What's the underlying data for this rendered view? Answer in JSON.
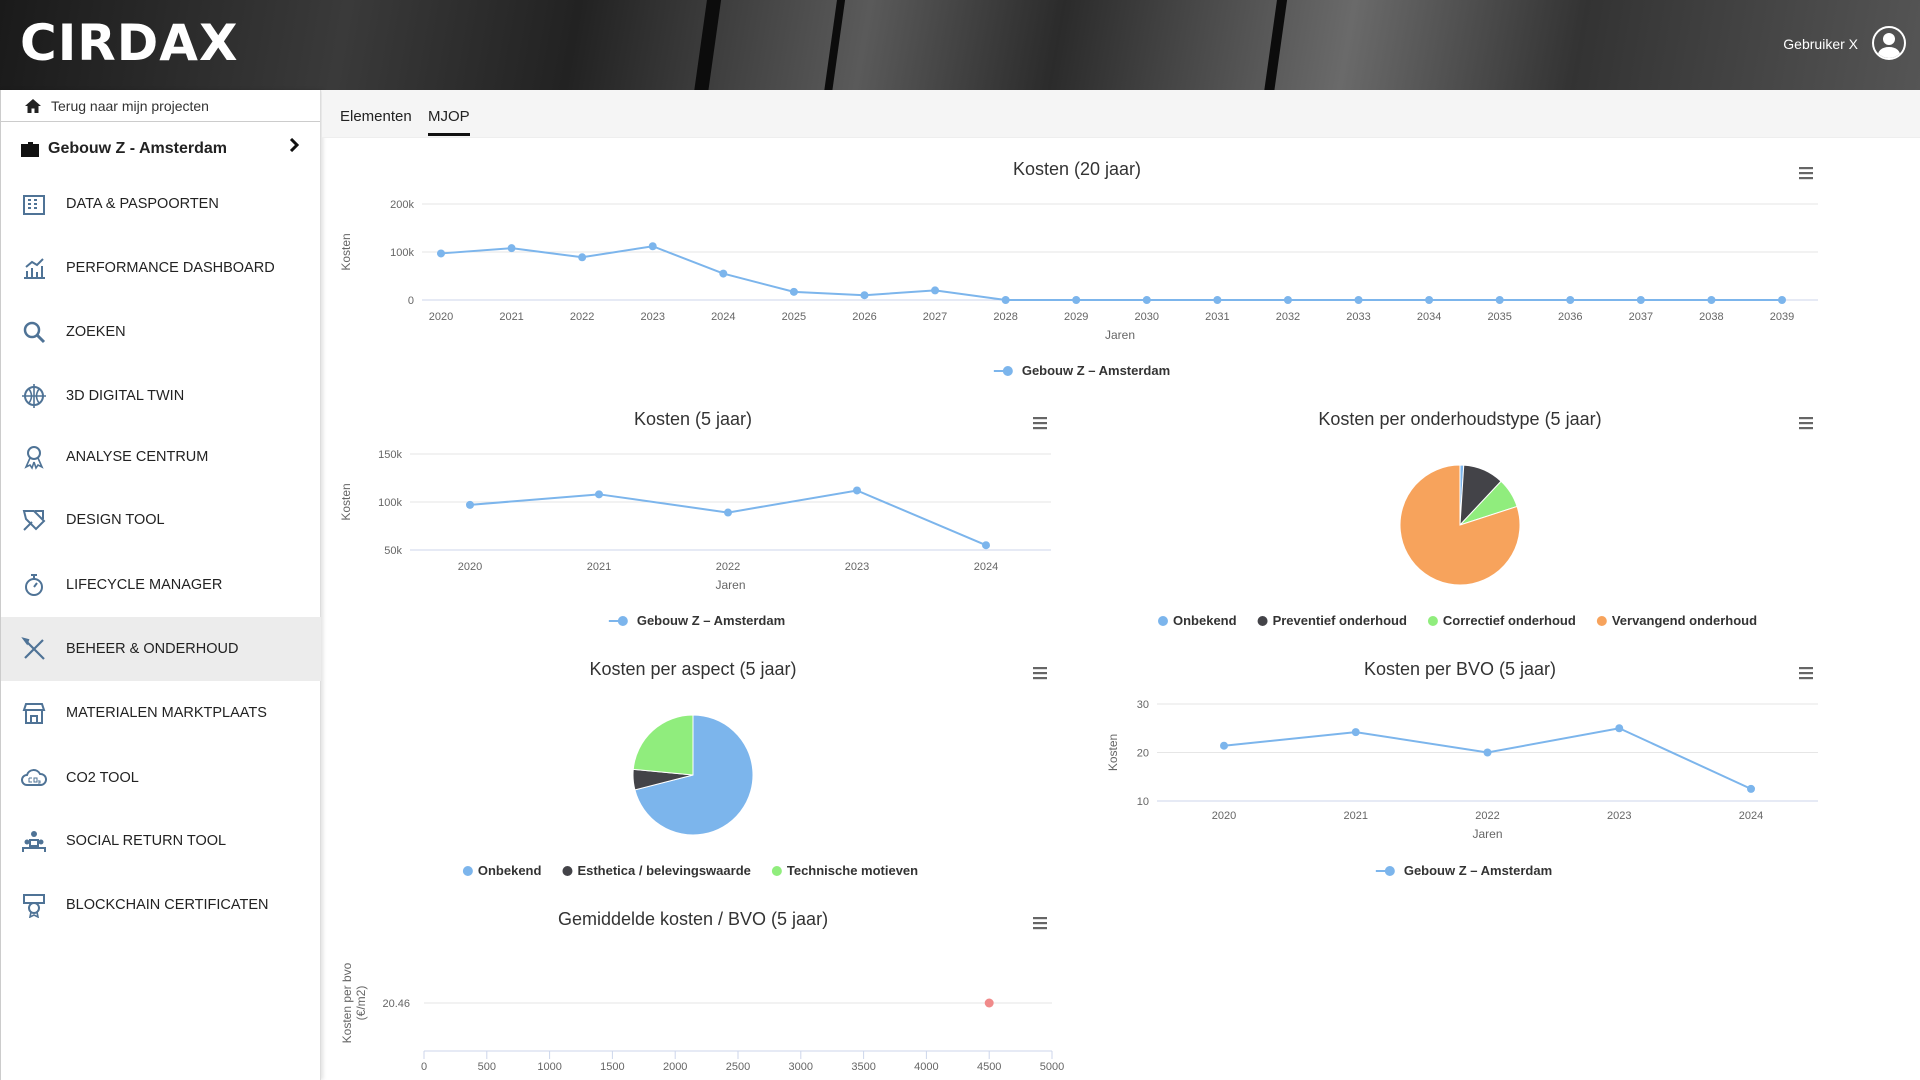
{
  "header": {
    "logo": "CIRDAX",
    "user_name": "Gebruiker X"
  },
  "sidebar": {
    "back_label": "Terug naar mijn projecten",
    "project_name": "Gebouw Z - Amsterdam",
    "items": [
      {
        "label": "DATA & PASPOORTEN",
        "icon": "building-icon"
      },
      {
        "label": "PERFORMANCE DASHBOARD",
        "icon": "bar-chart-icon"
      },
      {
        "label": "ZOEKEN",
        "icon": "search-icon"
      },
      {
        "label": "3D DIGITAL TWIN",
        "icon": "globe-icon"
      },
      {
        "label": "ANALYSE CENTRUM",
        "icon": "award-icon"
      },
      {
        "label": "DESIGN TOOL",
        "icon": "design-icon"
      },
      {
        "label": "LIFECYCLE MANAGER",
        "icon": "stopwatch-icon"
      },
      {
        "label": "BEHEER & ONDERHOUD",
        "icon": "tools-icon",
        "active": true
      },
      {
        "label": "MATERIALEN MARKTPLAATS",
        "icon": "store-icon"
      },
      {
        "label": "CO2 TOOL",
        "icon": "cloud-co2-icon"
      },
      {
        "label": "SOCIAL RETURN TOOL",
        "icon": "people-icon"
      },
      {
        "label": "BLOCKCHAIN CERTIFICATEN",
        "icon": "certificate-icon"
      }
    ]
  },
  "tabs": [
    {
      "label": "Elementen"
    },
    {
      "label": "MJOP",
      "active": true
    }
  ],
  "colors": {
    "blue": "#7cb5ec",
    "dark": "#434348",
    "green": "#90ed7d",
    "orange": "#f7a35c",
    "point": "#f08a8a",
    "grid": "#e6e6e6"
  },
  "chart_data": [
    {
      "id": "c20",
      "type": "line",
      "title": "Kosten (20 jaar)",
      "xlabel": "Jaren",
      "ylabel": "Kosten",
      "categories": [
        "2020",
        "2021",
        "2022",
        "2023",
        "2024",
        "2025",
        "2026",
        "2027",
        "2028",
        "2029",
        "2030",
        "2031",
        "2032",
        "2033",
        "2034",
        "2035",
        "2036",
        "2037",
        "2038",
        "2039"
      ],
      "series": [
        {
          "name": "Gebouw Z – Amsterdam",
          "values": [
            97000,
            108000,
            89000,
            112000,
            55000,
            17000,
            10000,
            20000,
            0,
            0,
            0,
            0,
            0,
            0,
            0,
            0,
            0,
            0,
            0,
            0
          ]
        }
      ],
      "ylim": [
        0,
        200000
      ],
      "yticks": [
        {
          "v": 0,
          "label": "0"
        },
        {
          "v": 100000,
          "label": "100k"
        },
        {
          "v": 200000,
          "label": "200k"
        }
      ],
      "legend": "bottom-center"
    },
    {
      "id": "c5",
      "type": "line",
      "title": "Kosten (5 jaar)",
      "xlabel": "Jaren",
      "ylabel": "Kosten",
      "categories": [
        "2020",
        "2021",
        "2022",
        "2023",
        "2024"
      ],
      "series": [
        {
          "name": "Gebouw Z – Amsterdam",
          "values": [
            97000,
            108000,
            89000,
            112000,
            55000
          ]
        }
      ],
      "ylim": [
        50000,
        150000
      ],
      "yticks": [
        {
          "v": 50000,
          "label": "50k"
        },
        {
          "v": 100000,
          "label": "100k"
        },
        {
          "v": 150000,
          "label": "150k"
        }
      ],
      "legend": "bottom-center"
    },
    {
      "id": "pieType",
      "type": "pie",
      "title": "Kosten per onderhoudstype (5 jaar)",
      "slices": [
        {
          "name": "Onbekend",
          "value": 1,
          "color": "#7cb5ec"
        },
        {
          "name": "Preventief onderhoud",
          "value": 11,
          "color": "#434348"
        },
        {
          "name": "Correctief onderhoud",
          "value": 8,
          "color": "#90ed7d"
        },
        {
          "name": "Vervangend onderhoud",
          "value": 80,
          "color": "#f7a35c"
        }
      ],
      "legend": "bottom-center"
    },
    {
      "id": "pieAspect",
      "type": "pie",
      "title": "Kosten per aspect (5 jaar)",
      "slices": [
        {
          "name": "Onbekend",
          "value": 71,
          "color": "#7cb5ec"
        },
        {
          "name": "Esthetica / belevingswaarde",
          "value": 5.5,
          "color": "#434348"
        },
        {
          "name": "Technische motieven",
          "value": 23.5,
          "color": "#90ed7d"
        }
      ],
      "legend": "bottom-center"
    },
    {
      "id": "cBvo",
      "type": "line",
      "title": "Kosten per BVO (5 jaar)",
      "xlabel": "Jaren",
      "ylabel": "Kosten",
      "categories": [
        "2020",
        "2021",
        "2022",
        "2023",
        "2024"
      ],
      "series": [
        {
          "name": "Gebouw Z – Amsterdam",
          "values": [
            21.4,
            24.2,
            20,
            25,
            12.5
          ]
        }
      ],
      "ylim": [
        10,
        30
      ],
      "yticks": [
        {
          "v": 10,
          "label": "10"
        },
        {
          "v": 20,
          "label": "20"
        },
        {
          "v": 30,
          "label": "30"
        }
      ],
      "legend": "bottom-center"
    },
    {
      "id": "cAvg",
      "type": "scatter",
      "title": "Gemiddelde kosten / BVO (5 jaar)",
      "ylabel": "Kosten per bvo",
      "ylabel2": "(€/m2)",
      "xlim": [
        0,
        5000
      ],
      "xticks": [
        "0",
        "500",
        "1000",
        "1500",
        "2000",
        "2500",
        "3000",
        "3500",
        "4000",
        "4500",
        "5000"
      ],
      "points": [
        {
          "x": 4500,
          "y": 20.46
        }
      ],
      "ytick_label": "20.46"
    }
  ]
}
